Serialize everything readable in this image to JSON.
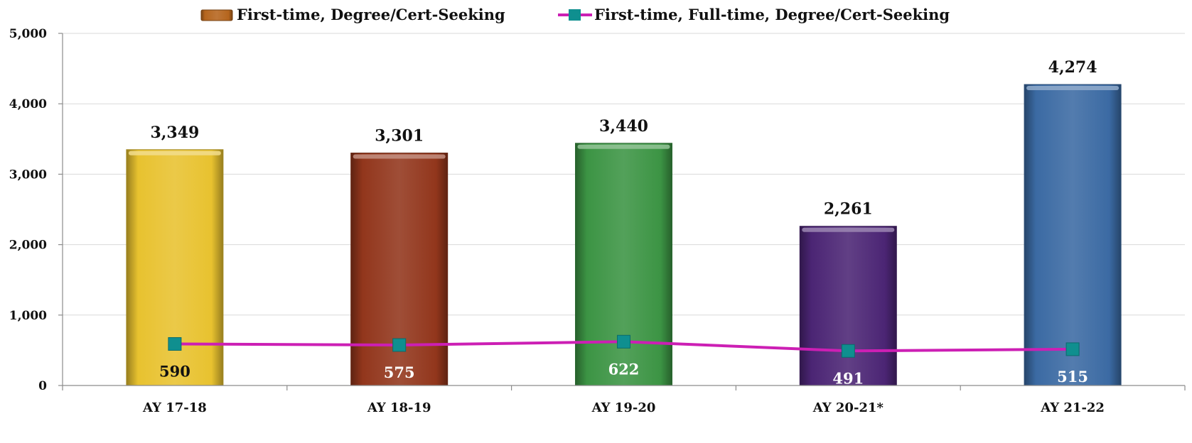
{
  "chart_data": {
    "type": "bar",
    "categories": [
      "AY 17-18",
      "AY 18-19",
      "AY 19-20",
      "AY 20-21*",
      "AY 21-22"
    ],
    "ylim": [
      0,
      5000
    ],
    "yticks": [
      0,
      1000,
      2000,
      3000,
      4000,
      5000
    ],
    "ytick_labels": [
      "0",
      "1,000",
      "2,000",
      "3,000",
      "4,000",
      "5,000"
    ],
    "grid": true,
    "legend_position": "top-center",
    "title": "",
    "xlabel": "",
    "ylabel": "",
    "series": [
      {
        "name": "First-time, Degree/Cert-Seeking",
        "kind": "bar",
        "values": [
          3349,
          3301,
          3440,
          2261,
          4274
        ],
        "labels": [
          "3,349",
          "3,301",
          "3,440",
          "2,261",
          "4,274"
        ],
        "bar_colors": [
          "#e8c22f",
          "#92361c",
          "#3c9444",
          "#4b2574",
          "#3b6aa3"
        ],
        "legend_color": "#b5651d"
      },
      {
        "name": "First-time, Full-time, Degree/Cert-Seeking",
        "kind": "line",
        "values": [
          590,
          575,
          622,
          491,
          515
        ],
        "labels": [
          "590",
          "575",
          "622",
          "491",
          "515"
        ],
        "line_color": "#cc1fb4",
        "marker_color": "#0f8f8f",
        "label_colors": [
          "#111111",
          "#ffffff",
          "#ffffff",
          "#ffffff",
          "#ffffff"
        ]
      }
    ]
  }
}
